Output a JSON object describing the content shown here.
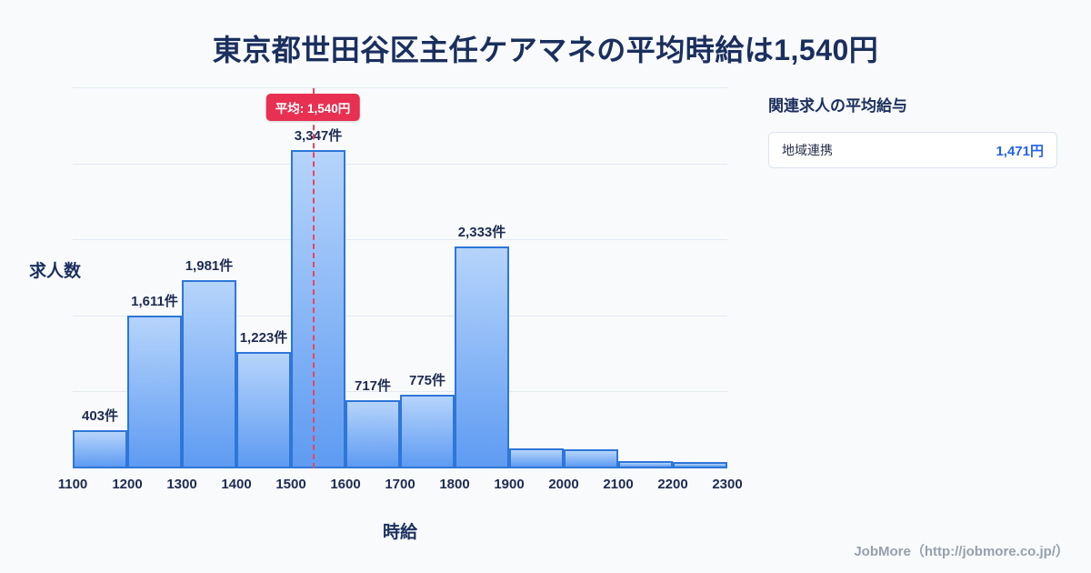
{
  "page": {
    "title": "東京都世田谷区主任ケアマネの平均時給は1,540円",
    "footer": "JobMore（http://jobmore.co.jp/）"
  },
  "chart_data": {
    "type": "bar",
    "title": "東京都世田谷区主任ケアマネの平均時給は1,540円",
    "xlabel": "時給",
    "ylabel": "求人数",
    "bin_start": 1100,
    "bin_width": 100,
    "x_ticks": [
      "1100",
      "1200",
      "1300",
      "1400",
      "1500",
      "1600",
      "1700",
      "1800",
      "1900",
      "2000",
      "2100",
      "2200",
      "2300"
    ],
    "values": [
      403,
      1611,
      1981,
      1223,
      3347,
      717,
      775,
      2333,
      210,
      200,
      75,
      70
    ],
    "bar_labels": [
      "403件",
      "1,611件",
      "1,981件",
      "1,223件",
      "3,347件",
      "717件",
      "775件",
      "2,333件",
      "",
      "",
      "",
      ""
    ],
    "ylim": [
      0,
      4000
    ],
    "grid": true,
    "legend": "none",
    "mean_line": {
      "value": 1540,
      "label": "平均: 1,540円"
    }
  },
  "side_panel": {
    "heading": "関連求人の平均給与",
    "rows": [
      {
        "label": "地域連携",
        "value": "1,471円"
      }
    ]
  },
  "colors": {
    "background": "#f8fafc",
    "title_text": "#1b2f5e",
    "bar_fill_top": "#b6d4fb",
    "bar_fill_bottom": "#5e9bf2",
    "bar_border": "#2e76d8",
    "mean_accent": "#e73052",
    "value_blue": "#2563eb",
    "gridline": "#e4e9f1",
    "footer_text": "#97a0ad"
  }
}
